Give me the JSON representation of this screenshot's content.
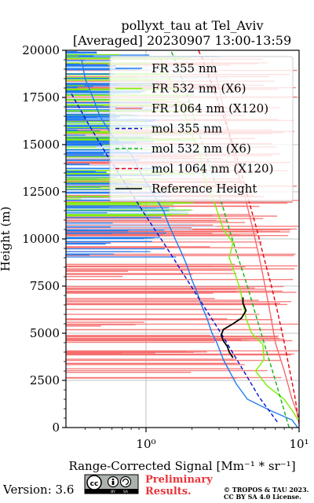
{
  "chart_data": {
    "type": "line",
    "title": "pollyxt_tau at Tel_Aviv",
    "subtitle": "[Averaged] 20230907 13:00-13:59",
    "xlabel": "Range-Corrected Signal [Mm⁻¹ * sr⁻¹]",
    "ylabel": "Height (m)",
    "xscale": "log",
    "xlim": [
      0.3,
      10
    ],
    "ylim": [
      0,
      20000
    ],
    "x_ticks": [
      {
        "value": 1,
        "label": "10⁰"
      },
      {
        "value": 10,
        "label": "10¹"
      }
    ],
    "y_ticks": [
      0,
      2500,
      5000,
      7500,
      10000,
      12500,
      15000,
      17500,
      20000
    ],
    "grid": true,
    "legend_position": "top-right",
    "colors": {
      "fr355": "#1e7bf0",
      "fr532": "#7cf000",
      "fr1064": "#f56a6a",
      "mol355": "#0011d8",
      "mol532": "#12b512",
      "mol1064": "#e8000b",
      "ref": "#000000"
    },
    "series": [
      {
        "name": "FR 355 nm",
        "key": "fr355",
        "style": "solid",
        "points": [
          [
            9.8,
            0
          ],
          [
            9.0,
            400
          ],
          [
            6.5,
            900
          ],
          [
            4.6,
            1500
          ],
          [
            3.9,
            2300
          ],
          [
            3.5,
            3000
          ],
          [
            3.2,
            3600
          ],
          [
            2.9,
            4500
          ],
          [
            2.7,
            5000
          ],
          [
            2.5,
            5800
          ],
          [
            2.3,
            6500
          ],
          [
            2.15,
            7200
          ],
          [
            2.0,
            7800
          ],
          [
            1.85,
            8600
          ],
          [
            1.7,
            9300
          ],
          [
            1.55,
            10000
          ],
          [
            1.4,
            10800
          ],
          [
            1.3,
            11500
          ],
          [
            1.15,
            12200
          ],
          [
            1.0,
            13000
          ],
          [
            0.9,
            13700
          ],
          [
            0.8,
            14500
          ],
          [
            0.6,
            15500
          ],
          [
            0.5,
            16500
          ],
          [
            0.45,
            17500
          ],
          [
            0.4,
            18500
          ],
          [
            0.38,
            19500
          ]
        ]
      },
      {
        "name": "FR 532 nm (X6)",
        "key": "fr532",
        "style": "solid",
        "points": [
          [
            10,
            300
          ],
          [
            9.2,
            800
          ],
          [
            8.0,
            1500
          ],
          [
            6.2,
            2200
          ],
          [
            5.2,
            3000
          ],
          [
            5.9,
            3600
          ],
          [
            5.8,
            4400
          ],
          [
            4.9,
            5000
          ],
          [
            4.5,
            5800
          ],
          [
            4.3,
            6600
          ],
          [
            4.1,
            7400
          ],
          [
            3.8,
            8200
          ],
          [
            3.5,
            9000
          ],
          [
            3.7,
            9800
          ],
          [
            3.2,
            10500
          ],
          [
            3.0,
            11200
          ],
          [
            2.8,
            11900
          ],
          [
            2.6,
            12600
          ],
          [
            2.4,
            13300
          ],
          [
            2.3,
            14000
          ],
          [
            2.2,
            14800
          ],
          [
            2.0,
            15500
          ],
          [
            1.85,
            16300
          ],
          [
            1.7,
            17000
          ],
          [
            1.55,
            17800
          ],
          [
            1.4,
            18600
          ],
          [
            1.25,
            19500
          ]
        ]
      },
      {
        "name": "FR 1064 nm (X120)",
        "key": "fr1064",
        "style": "solid",
        "points": [
          [
            10,
            500
          ],
          [
            9.0,
            1500
          ],
          [
            8.0,
            3000
          ],
          [
            7.0,
            4500
          ],
          [
            6.5,
            6000
          ],
          [
            6.0,
            7500
          ],
          [
            5.5,
            9000
          ],
          [
            5.0,
            10500
          ],
          [
            4.5,
            12000
          ],
          [
            4.0,
            13500
          ],
          [
            3.6,
            15000
          ],
          [
            3.3,
            16500
          ],
          [
            3.0,
            18000
          ],
          [
            2.7,
            19500
          ]
        ]
      },
      {
        "name": "mol 355 nm",
        "key": "mol355",
        "style": "dashed",
        "points": [
          [
            7.2,
            300
          ],
          [
            5.5,
            1600
          ],
          [
            4.2,
            3200
          ],
          [
            3.2,
            4800
          ],
          [
            2.4,
            6400
          ],
          [
            1.8,
            8000
          ],
          [
            1.35,
            9600
          ],
          [
            1.0,
            11200
          ],
          [
            0.75,
            12800
          ],
          [
            0.56,
            14400
          ],
          [
            0.42,
            16100
          ],
          [
            0.32,
            17800
          ]
        ]
      },
      {
        "name": "mol 532 nm (X6)",
        "key": "mol532",
        "style": "dashed",
        "points": [
          [
            8.6,
            0
          ],
          [
            7.6,
            1500
          ],
          [
            6.7,
            3000
          ],
          [
            5.9,
            4500
          ],
          [
            5.2,
            6000
          ],
          [
            4.6,
            7500
          ],
          [
            4.0,
            9000
          ],
          [
            3.5,
            10500
          ],
          [
            3.1,
            12000
          ],
          [
            2.7,
            13500
          ],
          [
            2.35,
            15000
          ],
          [
            2.05,
            16500
          ],
          [
            1.8,
            18000
          ],
          [
            1.55,
            19500
          ],
          [
            1.45,
            20000
          ]
        ]
      },
      {
        "name": "mol 1064 nm (X120)",
        "key": "mol1064",
        "style": "dashed",
        "points": [
          [
            10,
            200
          ],
          [
            9.4,
            1600
          ],
          [
            8.7,
            3000
          ],
          [
            8.0,
            4500
          ],
          [
            7.3,
            6000
          ],
          [
            6.6,
            7500
          ],
          [
            5.9,
            9000
          ],
          [
            5.3,
            10500
          ],
          [
            4.7,
            12000
          ],
          [
            4.2,
            13500
          ],
          [
            3.7,
            15000
          ],
          [
            3.2,
            16500
          ],
          [
            2.75,
            18000
          ],
          [
            2.35,
            19500
          ],
          [
            2.2,
            20000
          ]
        ]
      },
      {
        "name": "Reference Height",
        "key": "ref",
        "style": "solid",
        "points": [
          [
            3.7,
            3700
          ],
          [
            3.5,
            4000
          ],
          [
            3.4,
            4300
          ],
          [
            3.2,
            4600
          ],
          [
            3.1,
            4900
          ],
          [
            3.2,
            5200
          ],
          [
            3.7,
            5500
          ],
          [
            4.2,
            5800
          ],
          [
            4.5,
            6200
          ],
          [
            4.3,
            6600
          ],
          [
            4.3,
            6900
          ]
        ]
      }
    ]
  },
  "footer": {
    "version": "Version: 3.6",
    "license_badge": [
      "cc",
      "BY",
      "SA"
    ],
    "preliminary_line1": "Preliminary",
    "preliminary_line2": "Results.",
    "copyright_line1": "© TROPOS & TAU 2023.",
    "copyright_line2": "CC BY SA 4.0 License."
  }
}
